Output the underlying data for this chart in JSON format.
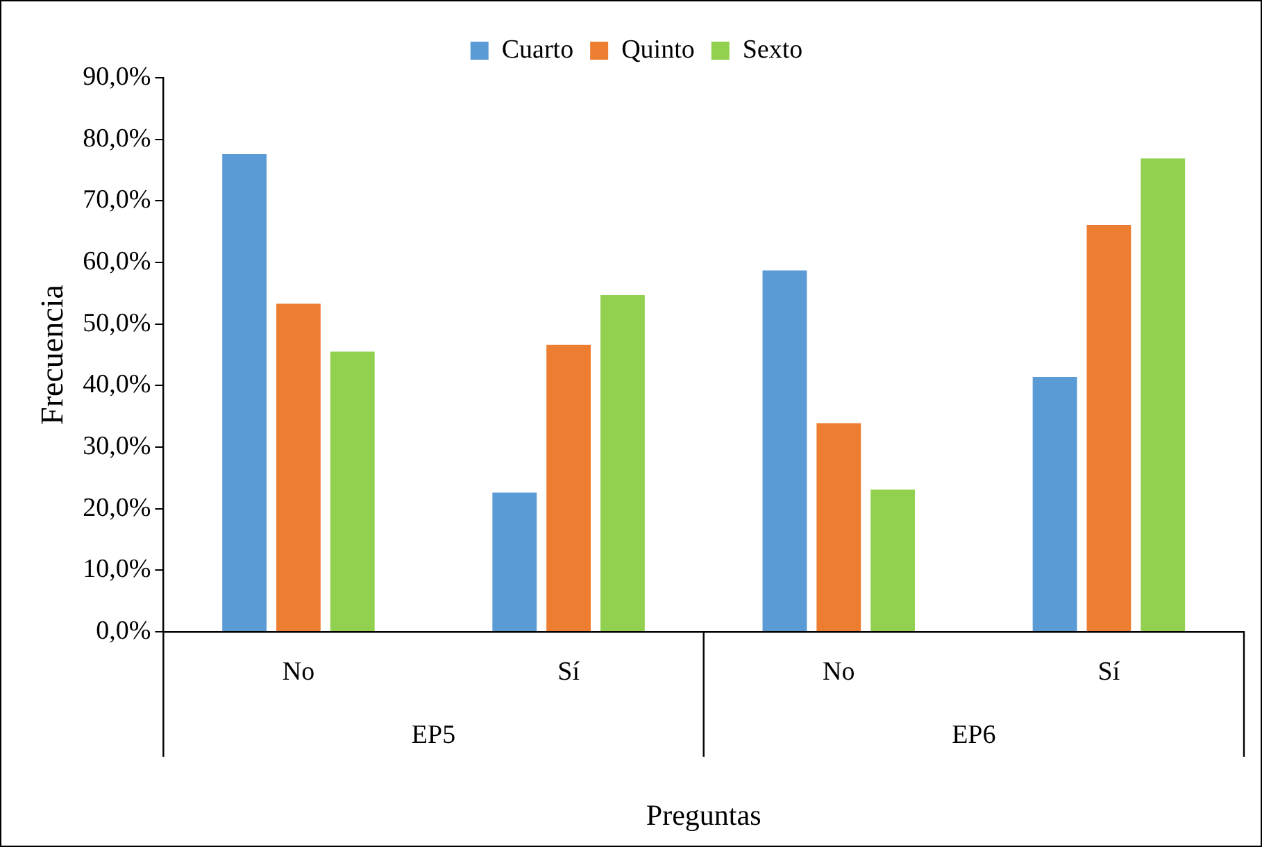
{
  "chart_data": {
    "type": "bar",
    "xlabel": "Preguntas",
    "ylabel": "Frecuencia",
    "categories": [
      "No",
      "Sí",
      "No",
      "Sí"
    ],
    "annotations": [
      "EP5",
      "EP6"
    ],
    "series": [
      {
        "name": "Cuarto",
        "color": "#5b9bd5",
        "values": [
          77.6,
          22.6,
          58.7,
          41.4
        ]
      },
      {
        "name": "Quinto",
        "color": "#ed7d31",
        "values": [
          53.3,
          46.6,
          33.9,
          66.1
        ]
      },
      {
        "name": "Sexto",
        "color": "#92d050",
        "values": [
          45.5,
          54.7,
          23.1,
          76.9
        ]
      }
    ],
    "ylim": [
      0,
      90
    ],
    "yticks": [
      {
        "value": 0,
        "label": "0,0%"
      },
      {
        "value": 10,
        "label": "10,0%"
      },
      {
        "value": 20,
        "label": "20,0%"
      },
      {
        "value": 30,
        "label": "30,0%"
      },
      {
        "value": 40,
        "label": "40,0%"
      },
      {
        "value": 50,
        "label": "50,0%"
      },
      {
        "value": 60,
        "label": "60,0%"
      },
      {
        "value": 70,
        "label": "70,0%"
      },
      {
        "value": 80,
        "label": "80,0%"
      },
      {
        "value": 90,
        "label": "90,0%"
      }
    ],
    "grid": false,
    "legend": "top"
  }
}
